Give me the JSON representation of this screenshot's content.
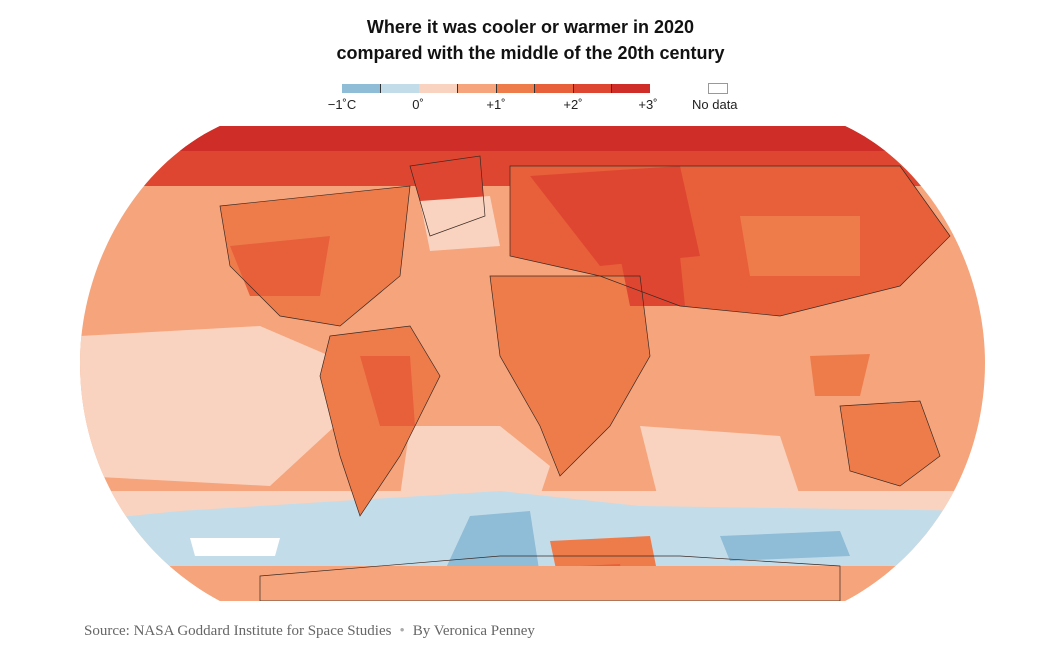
{
  "title": {
    "line1": "Where it was cooler or warmer in 2020",
    "line2": "compared with the middle of the 20th century"
  },
  "legend": {
    "labels": [
      "−1˚C",
      "0˚",
      "+1˚",
      "+2˚",
      "+3˚"
    ],
    "no_data_label": "No data",
    "colors": [
      "#8fbcd6",
      "#c3dce9",
      "#f9d3bf",
      "#f5a47b",
      "#ee7c4b",
      "#e8603a",
      "#de4631",
      "#cf2d27"
    ]
  },
  "map": {
    "projection": "robinson",
    "palette": {
      "polar_hot": "#cf2d27",
      "very_warm": "#de4631",
      "warm": "#e8603a",
      "mid_warm": "#ee7c4b",
      "mild_warm": "#f5a47b",
      "slight": "#f9d3bf",
      "cool": "#c3dce9",
      "cold": "#8fbcd6",
      "no_data": "#ffffff"
    }
  },
  "footer": {
    "source": "Source: NASA Goddard Institute for Space Studies",
    "byline": "By Veronica Penney"
  }
}
